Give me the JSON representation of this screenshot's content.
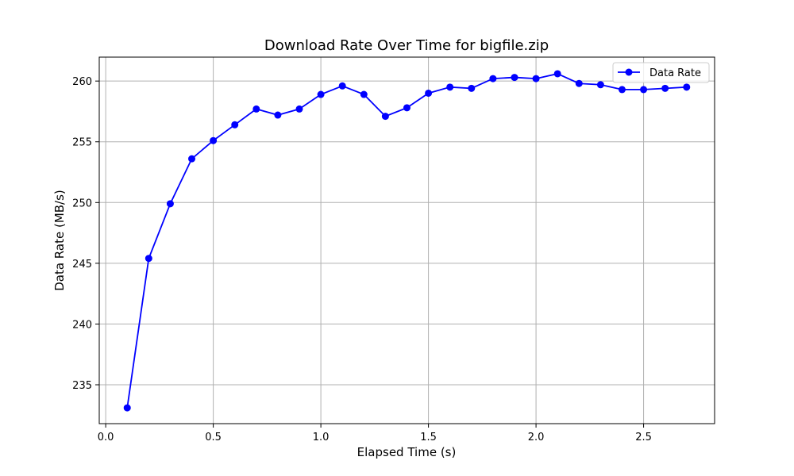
{
  "chart_data": {
    "type": "line",
    "title": "Download Rate Over Time for bigfile.zip",
    "xlabel": "Elapsed Time (s)",
    "ylabel": "Data Rate (MB/s)",
    "xlim": [
      -0.03,
      2.83
    ],
    "ylim": [
      231.8,
      261.97
    ],
    "xticks": [
      0.0,
      0.5,
      1.0,
      1.5,
      2.0,
      2.5
    ],
    "xtick_labels": [
      "0.0",
      "0.5",
      "1.0",
      "1.5",
      "2.0",
      "2.5"
    ],
    "yticks": [
      235,
      240,
      245,
      250,
      255,
      260
    ],
    "ytick_labels": [
      "235",
      "240",
      "245",
      "250",
      "255",
      "260"
    ],
    "grid": true,
    "legend_position": "top-right",
    "series": [
      {
        "name": "Data Rate",
        "color": "#0000ff",
        "marker": "circle",
        "x": [
          0.1,
          0.2,
          0.3,
          0.4,
          0.5,
          0.6,
          0.7,
          0.8,
          0.9,
          1.0,
          1.1,
          1.2,
          1.3,
          1.4,
          1.5,
          1.6,
          1.7,
          1.8,
          1.9,
          2.0,
          2.1,
          2.2,
          2.3,
          2.4,
          2.5,
          2.6,
          2.7
        ],
        "y": [
          233.1,
          245.4,
          249.9,
          253.6,
          255.1,
          256.4,
          257.7,
          257.2,
          257.7,
          258.9,
          259.6,
          258.9,
          257.1,
          257.8,
          259.0,
          259.5,
          259.4,
          260.2,
          260.3,
          260.2,
          260.6,
          259.8,
          259.7,
          259.3,
          259.3,
          259.4,
          259.5
        ]
      }
    ]
  }
}
